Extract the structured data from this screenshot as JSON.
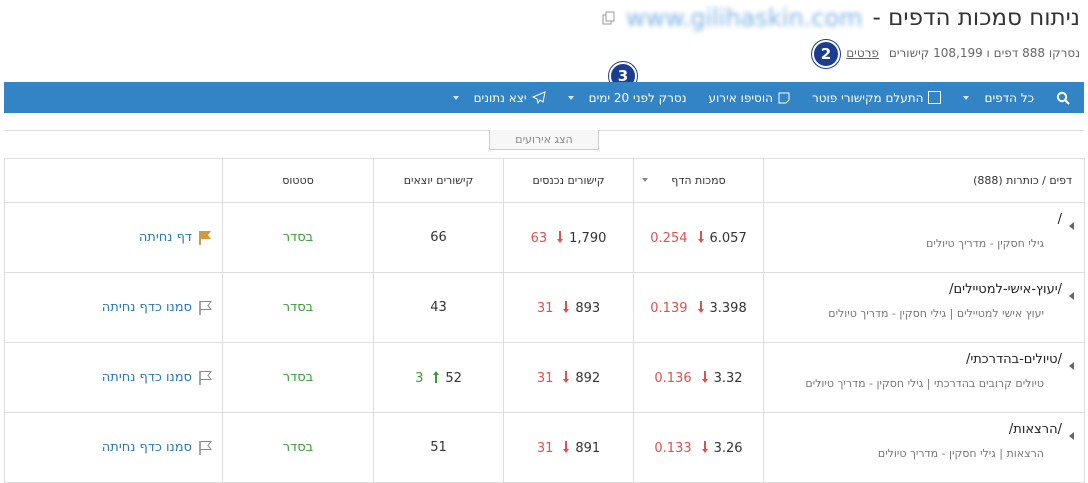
{
  "header": {
    "title": "ניתוח סמכות הדפים -",
    "site": "www.gilihaskin.com",
    "summary": "נסרקו 888 דפים ו 108,199 קישורים",
    "details_link": "פרטים",
    "badges": [
      "2",
      "3"
    ]
  },
  "toolbar": {
    "items": [
      {
        "label": "כל הדפים",
        "kind": "dropdown"
      },
      {
        "label": "התעלם מקישורי פוטר",
        "kind": "checkbox"
      },
      {
        "label": "הוסיפו אירוע",
        "kind": "note"
      },
      {
        "label": "נסרק לפני 20 ימים",
        "kind": "dropdown"
      },
      {
        "label": "יצא נתונים",
        "kind": "export"
      }
    ]
  },
  "events_button": "הצג אירועים",
  "table": {
    "headers": [
      "דפים / כותרות (888)",
      "סמכות הדף",
      "קישורים נכנסים",
      "קישורים יוצאים",
      "סטטוס"
    ],
    "rows": [
      {
        "path": "/",
        "title": "גילי חסקין - מדריך טיולים",
        "authority": "6.057",
        "authority_change": "0.254",
        "authority_trend": "down",
        "inbound": "1,790",
        "inbound_change": "63",
        "inbound_trend": "down",
        "outbound": "66",
        "status": "בסדר",
        "action": "דף נחיתה",
        "flagged": true
      },
      {
        "path": "/יעוץ-אישי-למטיילים/",
        "title": "יעוץ אישי למטיילים | גילי חסקין - מדריך טיולים",
        "authority": "3.398",
        "authority_change": "0.139",
        "authority_trend": "down",
        "inbound": "893",
        "inbound_change": "31",
        "inbound_trend": "down",
        "outbound": "43",
        "status": "בסדר",
        "action": "סמנו כדף נחיתה",
        "flagged": false
      },
      {
        "path": "/טיולים-בהדרכתי/",
        "title": "טיולים קרובים בהדרכתי | גילי חסקין - מדריך טיולים",
        "authority": "3.32",
        "authority_change": "0.136",
        "authority_trend": "down",
        "inbound": "892",
        "inbound_change": "31",
        "inbound_trend": "down",
        "outbound": "52",
        "outbound_change": "3",
        "outbound_trend": "up",
        "status": "בסדר",
        "action": "סמנו כדף נחיתה",
        "flagged": false
      },
      {
        "path": "/הרצאות/",
        "title": "הרצאות | גילי חסקין - מדריך טיולים",
        "authority": "3.26",
        "authority_change": "0.133",
        "authority_trend": "down",
        "inbound": "891",
        "inbound_change": "31",
        "inbound_trend": "down",
        "outbound": "51",
        "status": "בסדר",
        "action": "סמנו כדף נחיתה",
        "flagged": false
      }
    ]
  }
}
